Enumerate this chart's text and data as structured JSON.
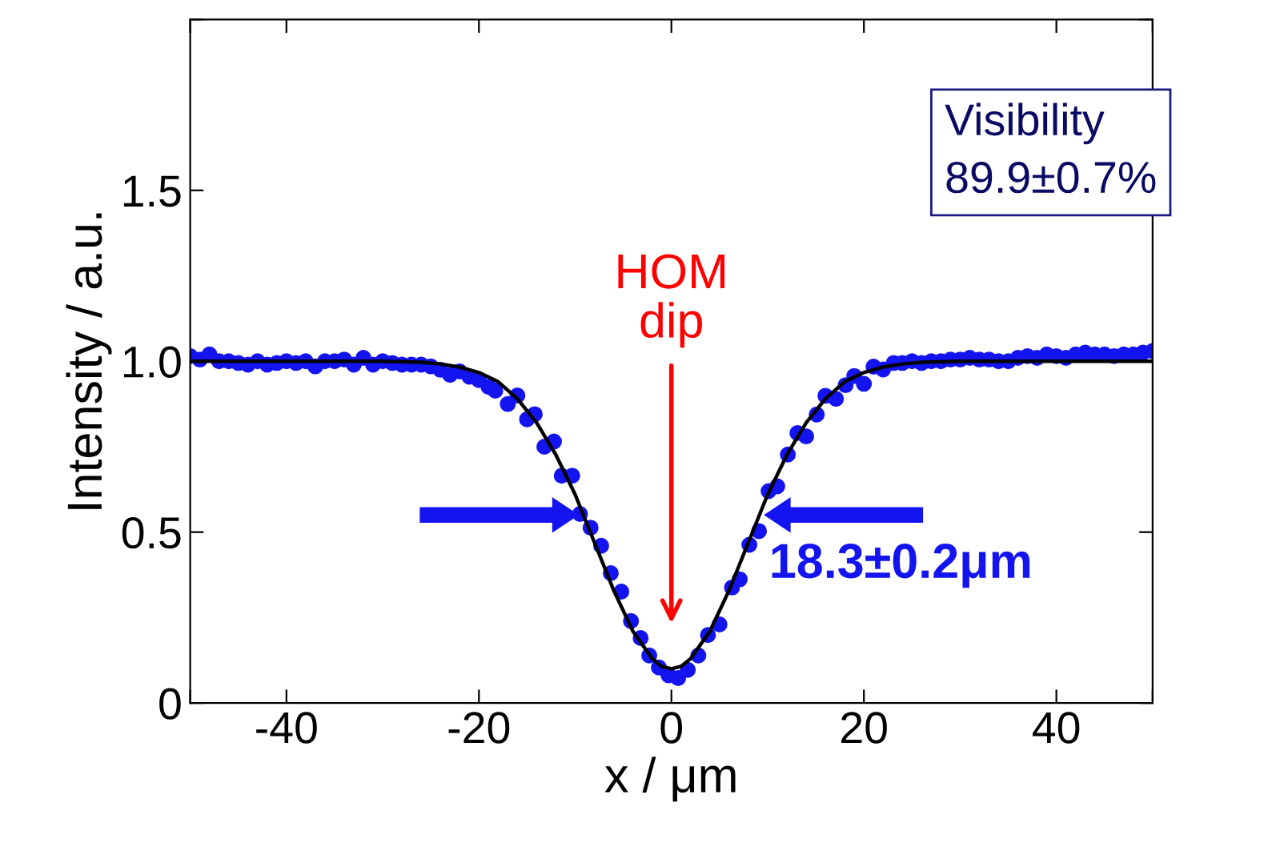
{
  "chart_data": {
    "type": "scatter",
    "xlabel": "x / μm",
    "ylabel": "Intensity / a.u.",
    "xlim": [
      -50,
      50
    ],
    "xticks": [
      {
        "value": -50,
        "label": null
      },
      -40,
      -20,
      0,
      20,
      40,
      {
        "value": 50,
        "label": null
      }
    ],
    "ylim": [
      0,
      2
    ],
    "yticks": [
      0,
      0.5,
      {
        "value": 1,
        "label": "1.0"
      },
      1.5,
      {
        "value": 2,
        "label": null
      }
    ],
    "grid": false,
    "legend": false,
    "marker": "circle",
    "series": [
      {
        "color": "#1414f0",
        "x": [
          -50,
          -49,
          -48,
          -47,
          -46,
          -45,
          -44,
          -43,
          -42,
          -41,
          -40,
          -39,
          -38,
          -37,
          -36,
          -35,
          -34,
          -33,
          -32,
          -31,
          -30,
          -29,
          -28,
          -27,
          -26,
          -25,
          -24,
          -23,
          -22,
          -21,
          -20,
          -19,
          -18.3,
          -17,
          -16,
          -15,
          -14.2,
          -13.2,
          -12.2,
          -11.4,
          -10.3,
          -9.5,
          -8.4,
          -7.3,
          -6.3,
          -5.2,
          -4.2,
          -3.2,
          -2.3,
          -1.3,
          -0.3,
          0.7,
          1.7,
          2.8,
          3.8,
          5.0,
          6.3,
          7.1,
          8.1,
          9.1,
          10.1,
          11.0,
          12.1,
          13.1,
          14.0,
          15.1,
          16.0,
          17.1,
          18.1,
          19.0,
          20.0,
          21.0,
          22.0,
          23.1,
          24,
          25,
          26,
          27,
          28,
          29,
          30,
          31,
          32,
          33,
          34,
          35,
          36,
          37,
          38,
          39,
          40,
          41,
          42,
          43,
          44,
          45,
          46,
          47,
          48,
          49,
          50
        ],
        "values": [
          1.015,
          1.005,
          1.02,
          1.0,
          1.0,
          0.995,
          0.99,
          1.0,
          0.99,
          0.995,
          1.0,
          0.995,
          1.0,
          0.985,
          1.0,
          1.0,
          1.005,
          0.99,
          1.01,
          0.99,
          1.0,
          0.995,
          0.99,
          0.99,
          0.99,
          0.985,
          0.975,
          0.96,
          0.97,
          0.955,
          0.945,
          0.925,
          0.914,
          0.875,
          0.9,
          0.83,
          0.845,
          0.75,
          0.765,
          0.665,
          0.665,
          0.553,
          0.513,
          0.46,
          0.38,
          0.326,
          0.24,
          0.19,
          0.139,
          0.104,
          0.081,
          0.073,
          0.097,
          0.139,
          0.199,
          0.23,
          0.338,
          0.362,
          0.463,
          0.503,
          0.62,
          0.634,
          0.727,
          0.79,
          0.78,
          0.844,
          0.899,
          0.89,
          0.93,
          0.957,
          0.934,
          0.984,
          0.976,
          0.995,
          0.995,
          1.0,
          0.995,
          1.0,
          1.0,
          1.005,
          1.005,
          1.01,
          1.005,
          1.005,
          1.0,
          1.0,
          1.01,
          1.015,
          1.01,
          1.02,
          1.015,
          1.01,
          1.02,
          1.025,
          1.02,
          1.02,
          1.015,
          1.02,
          1.02,
          1.025,
          1.03
        ]
      },
      {
        "type": "line",
        "color": "#000000",
        "marker": "none",
        "line_style": "solid",
        "x": [
          -50,
          -30,
          -26,
          -24,
          -22,
          -20,
          -18,
          -16,
          -14,
          -12,
          -10,
          -8,
          -6,
          -4,
          -2,
          -1,
          0,
          1,
          2,
          4,
          6,
          8,
          10,
          12,
          14,
          16,
          18,
          20,
          22,
          24,
          26,
          30,
          50
        ],
        "values": [
          1.0,
          1.0,
          0.997,
          0.992,
          0.983,
          0.967,
          0.94,
          0.89,
          0.82,
          0.726,
          0.61,
          0.47,
          0.33,
          0.21,
          0.13,
          0.107,
          0.1,
          0.107,
          0.13,
          0.21,
          0.33,
          0.47,
          0.61,
          0.726,
          0.82,
          0.89,
          0.94,
          0.967,
          0.983,
          0.992,
          0.997,
          1.0,
          1.0
        ]
      }
    ],
    "annotations": [
      "HOM\ndip",
      {
        "text": "18.3±0.2μm",
        "x": 9.15,
        "y": 0.55
      },
      "Visibility\n89.9±0.7%"
    ]
  }
}
